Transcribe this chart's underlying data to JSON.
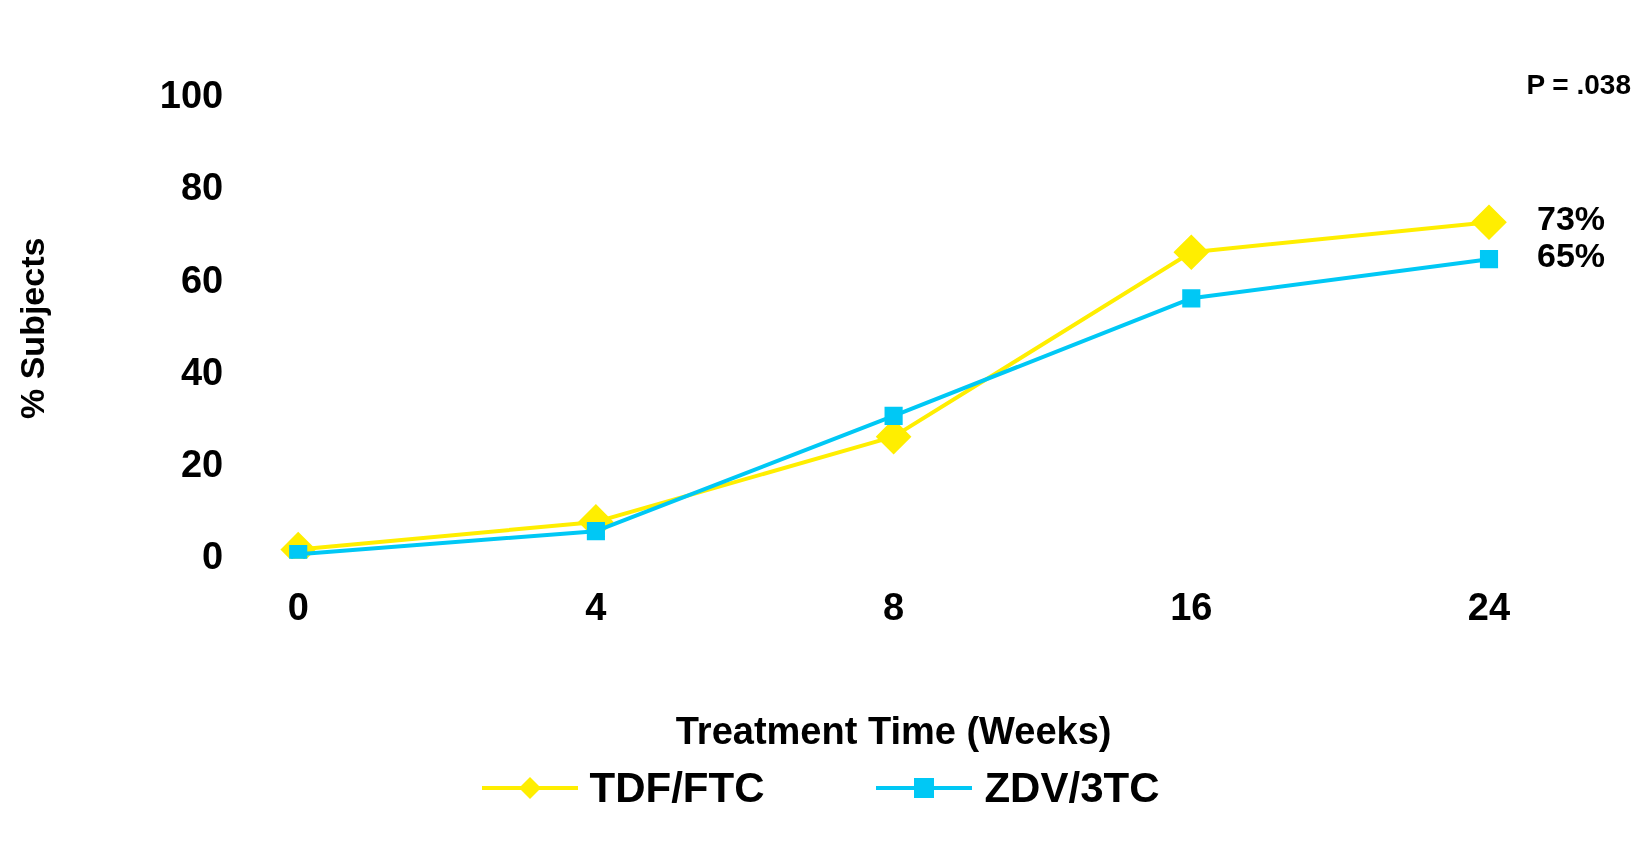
{
  "chart_data": {
    "type": "line",
    "xlabel": "Treatment Time (Weeks)",
    "ylabel": "% Subjects",
    "categories": [
      "0",
      "4",
      "8",
      "16",
      "24"
    ],
    "ylim": [
      0,
      100
    ],
    "yticks": [
      0,
      20,
      40,
      60,
      80,
      100
    ],
    "grid": false,
    "legend": "bottom",
    "line_style": "solid",
    "annotations": [
      "P = .038"
    ],
    "series": [
      {
        "name": "TDF/FTC",
        "color": "#ffee00",
        "marker": "diamond",
        "values": [
          2,
          8,
          26.5,
          66.5,
          73
        ],
        "value_labels": [
          null,
          null,
          null,
          null,
          "73%"
        ]
      },
      {
        "name": "ZDV/3TC",
        "color": "#00c8f5",
        "marker": "square",
        "values": [
          1,
          6,
          31,
          56.5,
          65
        ],
        "value_labels": [
          null,
          null,
          null,
          null,
          "65%"
        ]
      }
    ]
  }
}
